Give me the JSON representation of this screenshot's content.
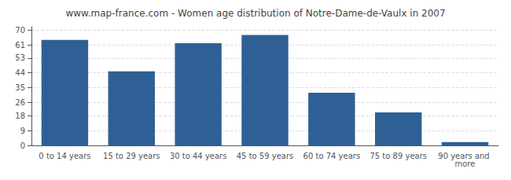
{
  "chart_data": {
    "type": "bar",
    "title": "www.map-france.com - Women age distribution of Notre-Dame-de-Vaulx in 2007",
    "categories": [
      "0 to 14 years",
      "15 to 29 years",
      "30 to 44 years",
      "45 to 59 years",
      "60 to 74 years",
      "75 to 89 years",
      "90 years and more"
    ],
    "values": [
      64,
      45,
      62,
      67,
      32,
      20,
      2
    ],
    "color": "#2e6095",
    "ylim": [
      0,
      72
    ],
    "yticks": [
      0,
      9,
      18,
      26,
      35,
      44,
      53,
      61,
      70
    ],
    "grid": true
  }
}
